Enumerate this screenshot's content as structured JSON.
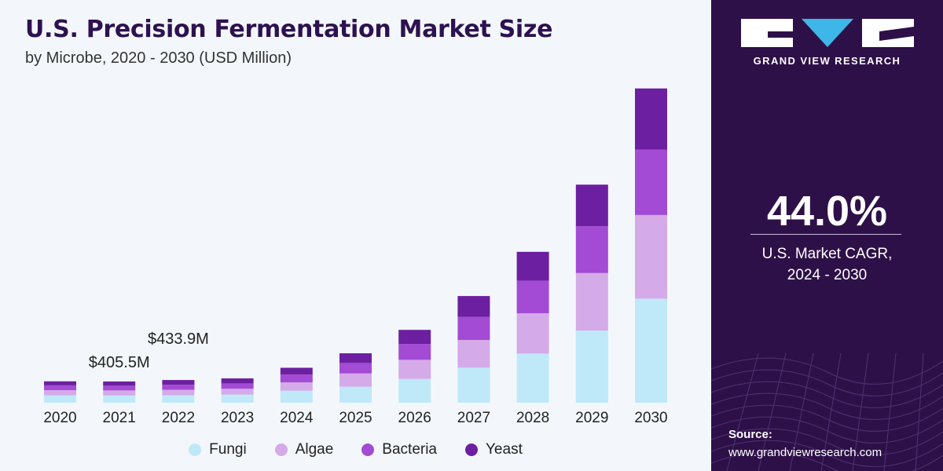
{
  "chart_data": {
    "type": "bar",
    "stacked": true,
    "title": "U.S. Precision Fermentation Market Size",
    "subtitle": "by Microbe, 2020 - 2030 (USD Million)",
    "categories": [
      "2020",
      "2021",
      "2022",
      "2023",
      "2024",
      "2025",
      "2026",
      "2027",
      "2028",
      "2029",
      "2030"
    ],
    "series": [
      {
        "name": "Fungi",
        "color": "#bfe9f9",
        "values": [
          140,
          137,
          143,
          155,
          230,
          305,
          455,
          670,
          940,
          1380,
          1990
        ]
      },
      {
        "name": "Algae",
        "color": "#d4aae8",
        "values": [
          100,
          98,
          104,
          112,
          160,
          255,
          365,
          530,
          770,
          1100,
          1600
        ]
      },
      {
        "name": "Bacteria",
        "color": "#a34bd4",
        "values": [
          92,
          90,
          96,
          102,
          148,
          200,
          305,
          440,
          625,
          895,
          1250
        ]
      },
      {
        "name": "Yeast",
        "color": "#6c1fa0",
        "values": [
          77,
          81,
          91,
          96,
          130,
          185,
          268,
          400,
          550,
          795,
          1170
        ]
      }
    ],
    "annotations": [
      {
        "category": "2021",
        "label": "$405.5M"
      },
      {
        "category": "2022",
        "label": "$433.9M"
      }
    ],
    "ylim": [
      0,
      6200
    ],
    "xlabel": "",
    "ylabel": "",
    "grid": false,
    "legend": "bottom-center"
  },
  "panel": {
    "brand": "GRAND VIEW RESEARCH",
    "cagr_value": "44.0%",
    "cagr_label_line1": "U.S. Market CAGR,",
    "cagr_label_line2": "2024 - 2030",
    "source_label": "Source:",
    "source_url": "www.grandviewresearch.com"
  },
  "colors": {
    "title": "#2d1150",
    "panel_bg": "#2e1048",
    "logo_triangle": "#3fb6e8"
  }
}
